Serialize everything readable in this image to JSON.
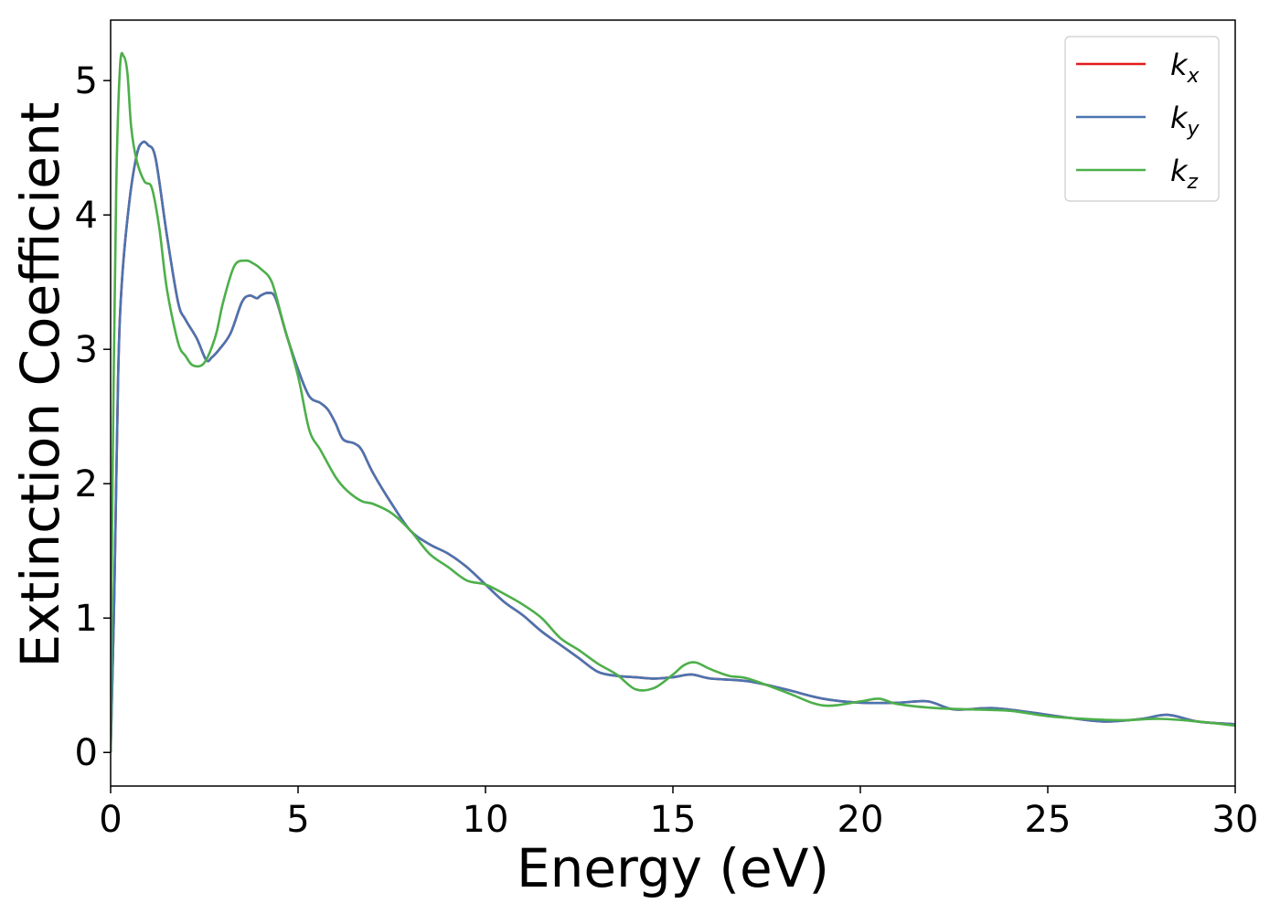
{
  "chart_data": {
    "type": "line",
    "title": "",
    "xlabel": "Energy (eV)",
    "ylabel": "Extinction Coefficient",
    "xlim": [
      0,
      30
    ],
    "ylim": [
      -0.25,
      5.45
    ],
    "xticks": [
      "0",
      "5",
      "10",
      "15",
      "20",
      "25",
      "30"
    ],
    "yticks": [
      "0",
      "1",
      "2",
      "3",
      "4",
      "5"
    ],
    "grid": false,
    "legend_position": "top-right",
    "series": [
      {
        "name": "k",
        "subscript": "x",
        "color": "#e41a1c",
        "x": [
          0,
          0.1,
          0.2,
          0.3,
          0.5,
          0.7,
          0.85,
          1.0,
          1.2,
          1.5,
          1.8,
          2.0,
          2.3,
          2.55,
          2.7,
          2.9,
          3.2,
          3.5,
          3.7,
          3.9,
          4.0,
          4.2,
          4.4,
          4.7,
          5.0,
          5.3,
          5.6,
          5.8,
          6.0,
          6.2,
          6.5,
          6.7,
          7.0,
          7.5,
          8.0,
          8.5,
          9.0,
          9.5,
          10.0,
          10.5,
          11.0,
          11.5,
          12.0,
          12.5,
          13.0,
          13.5,
          14.0,
          14.5,
          15.0,
          15.5,
          16.0,
          17.0,
          18.0,
          19.0,
          20.0,
          21.0,
          21.8,
          22.5,
          23.5,
          24.5,
          25.5,
          26.5,
          27.5,
          28.2,
          29.0,
          30.0
        ],
        "y": [
          0.0,
          1.2,
          2.8,
          3.5,
          4.1,
          4.45,
          4.54,
          4.52,
          4.42,
          3.85,
          3.35,
          3.22,
          3.08,
          2.92,
          2.94,
          3.0,
          3.12,
          3.35,
          3.4,
          3.38,
          3.4,
          3.42,
          3.38,
          3.1,
          2.85,
          2.65,
          2.6,
          2.55,
          2.45,
          2.33,
          2.3,
          2.25,
          2.08,
          1.85,
          1.65,
          1.55,
          1.48,
          1.38,
          1.25,
          1.12,
          1.02,
          0.9,
          0.8,
          0.7,
          0.6,
          0.57,
          0.56,
          0.55,
          0.56,
          0.58,
          0.55,
          0.53,
          0.47,
          0.4,
          0.37,
          0.37,
          0.38,
          0.32,
          0.33,
          0.3,
          0.26,
          0.23,
          0.25,
          0.28,
          0.23,
          0.21
        ]
      },
      {
        "name": "k",
        "subscript": "y",
        "color": "#4a74b0",
        "x": [
          0,
          0.1,
          0.2,
          0.3,
          0.5,
          0.7,
          0.85,
          1.0,
          1.2,
          1.5,
          1.8,
          2.0,
          2.3,
          2.55,
          2.7,
          2.9,
          3.2,
          3.5,
          3.7,
          3.9,
          4.0,
          4.2,
          4.4,
          4.7,
          5.0,
          5.3,
          5.6,
          5.8,
          6.0,
          6.2,
          6.5,
          6.7,
          7.0,
          7.5,
          8.0,
          8.5,
          9.0,
          9.5,
          10.0,
          10.5,
          11.0,
          11.5,
          12.0,
          12.5,
          13.0,
          13.5,
          14.0,
          14.5,
          15.0,
          15.5,
          16.0,
          17.0,
          18.0,
          19.0,
          20.0,
          21.0,
          21.8,
          22.5,
          23.5,
          24.5,
          25.5,
          26.5,
          27.5,
          28.2,
          29.0,
          30.0
        ],
        "y": [
          0.0,
          1.2,
          2.8,
          3.5,
          4.1,
          4.45,
          4.54,
          4.52,
          4.42,
          3.85,
          3.35,
          3.22,
          3.08,
          2.92,
          2.94,
          3.0,
          3.12,
          3.35,
          3.4,
          3.38,
          3.4,
          3.42,
          3.38,
          3.1,
          2.85,
          2.65,
          2.6,
          2.55,
          2.45,
          2.33,
          2.3,
          2.25,
          2.08,
          1.85,
          1.65,
          1.55,
          1.48,
          1.38,
          1.25,
          1.12,
          1.02,
          0.9,
          0.8,
          0.7,
          0.6,
          0.57,
          0.56,
          0.55,
          0.56,
          0.58,
          0.55,
          0.53,
          0.47,
          0.4,
          0.37,
          0.37,
          0.38,
          0.32,
          0.33,
          0.3,
          0.26,
          0.23,
          0.25,
          0.28,
          0.23,
          0.21
        ]
      },
      {
        "name": "k",
        "subscript": "z",
        "color": "#4daf4a",
        "x": [
          0,
          0.05,
          0.15,
          0.25,
          0.35,
          0.45,
          0.55,
          0.7,
          0.9,
          1.1,
          1.3,
          1.5,
          1.8,
          2.0,
          2.2,
          2.5,
          2.8,
          3.0,
          3.3,
          3.6,
          3.8,
          4.0,
          4.3,
          4.6,
          5.0,
          5.3,
          5.6,
          6.0,
          6.3,
          6.7,
          7.0,
          7.5,
          8.0,
          8.5,
          9.0,
          9.5,
          10.0,
          10.5,
          11.0,
          11.5,
          12.0,
          12.5,
          13.0,
          13.5,
          14.0,
          14.5,
          15.0,
          15.3,
          15.6,
          16.0,
          16.5,
          17.0,
          18.0,
          19.0,
          20.0,
          20.5,
          21.0,
          22.0,
          23.0,
          24.0,
          25.0,
          26.0,
          27.0,
          28.0,
          29.0,
          30.0
        ],
        "y": [
          0.0,
          2.0,
          4.2,
          5.1,
          5.18,
          5.05,
          4.65,
          4.4,
          4.25,
          4.2,
          3.9,
          3.45,
          3.05,
          2.95,
          2.88,
          2.9,
          3.1,
          3.35,
          3.62,
          3.66,
          3.64,
          3.6,
          3.5,
          3.2,
          2.8,
          2.4,
          2.25,
          2.05,
          1.95,
          1.87,
          1.85,
          1.78,
          1.65,
          1.48,
          1.38,
          1.28,
          1.25,
          1.18,
          1.1,
          1.0,
          0.85,
          0.76,
          0.66,
          0.58,
          0.47,
          0.48,
          0.58,
          0.65,
          0.67,
          0.62,
          0.57,
          0.55,
          0.45,
          0.35,
          0.38,
          0.4,
          0.36,
          0.33,
          0.32,
          0.31,
          0.27,
          0.25,
          0.24,
          0.25,
          0.23,
          0.2
        ]
      }
    ]
  }
}
